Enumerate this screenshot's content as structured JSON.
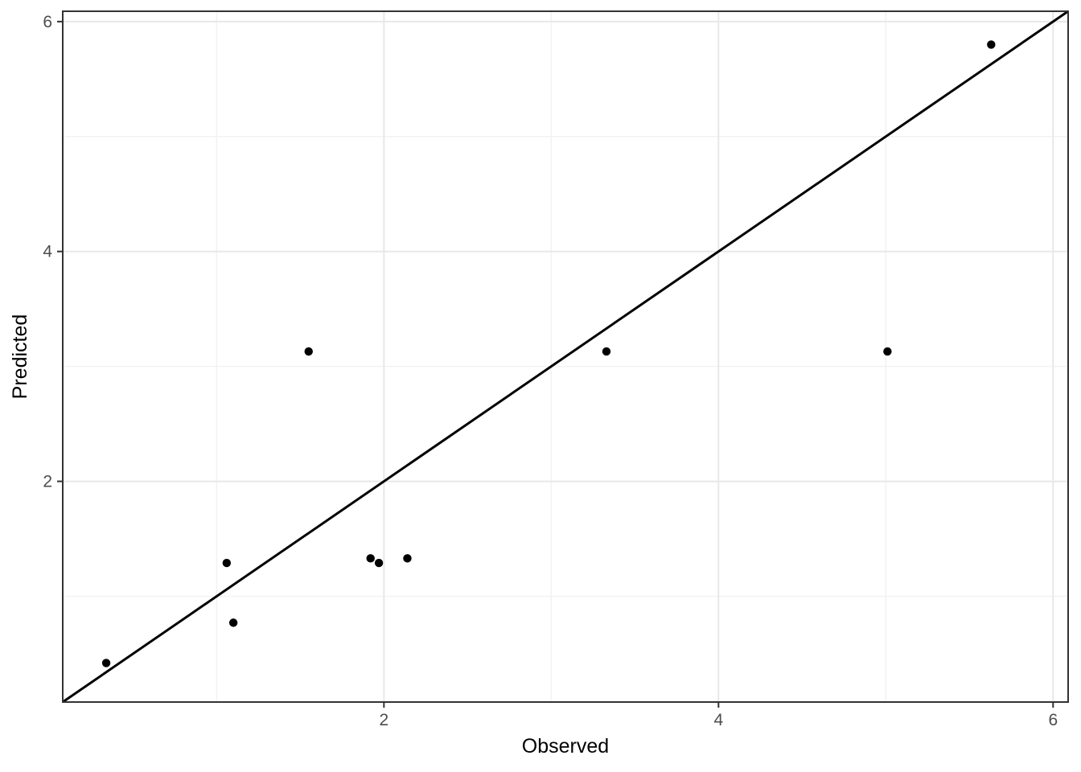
{
  "chart_data": {
    "type": "scatter",
    "title": "",
    "xlabel": "Observed",
    "ylabel": "Predicted",
    "xlim": [
      0.08,
      6.09
    ],
    "ylim": [
      0.08,
      6.09
    ],
    "x_major_ticks": [
      2,
      4,
      6
    ],
    "y_major_ticks": [
      2,
      4,
      6
    ],
    "x_minor_ticks": [
      1,
      3,
      5
    ],
    "y_minor_ticks": [
      1,
      3,
      5
    ],
    "grid": true,
    "legend": false,
    "points": [
      {
        "x": 0.34,
        "y": 0.42
      },
      {
        "x": 1.06,
        "y": 1.29
      },
      {
        "x": 1.1,
        "y": 0.77
      },
      {
        "x": 1.55,
        "y": 3.13
      },
      {
        "x": 1.92,
        "y": 1.33
      },
      {
        "x": 1.97,
        "y": 1.29
      },
      {
        "x": 2.14,
        "y": 1.33
      },
      {
        "x": 3.33,
        "y": 3.13
      },
      {
        "x": 5.01,
        "y": 3.13
      },
      {
        "x": 5.63,
        "y": 5.8
      }
    ],
    "reference_line": {
      "type": "identity",
      "slope": 1,
      "intercept": 0
    }
  },
  "style": {
    "background_color": "#ffffff",
    "panel_background": "#ffffff",
    "panel_border_color": "#333333",
    "grid_major_color": "#e8e8e8",
    "grid_minor_color": "#f2f2f2",
    "tick_color": "#333333",
    "tick_label_color": "#4d4d4d",
    "point_color": "#000000",
    "reference_line_color": "#000000"
  }
}
